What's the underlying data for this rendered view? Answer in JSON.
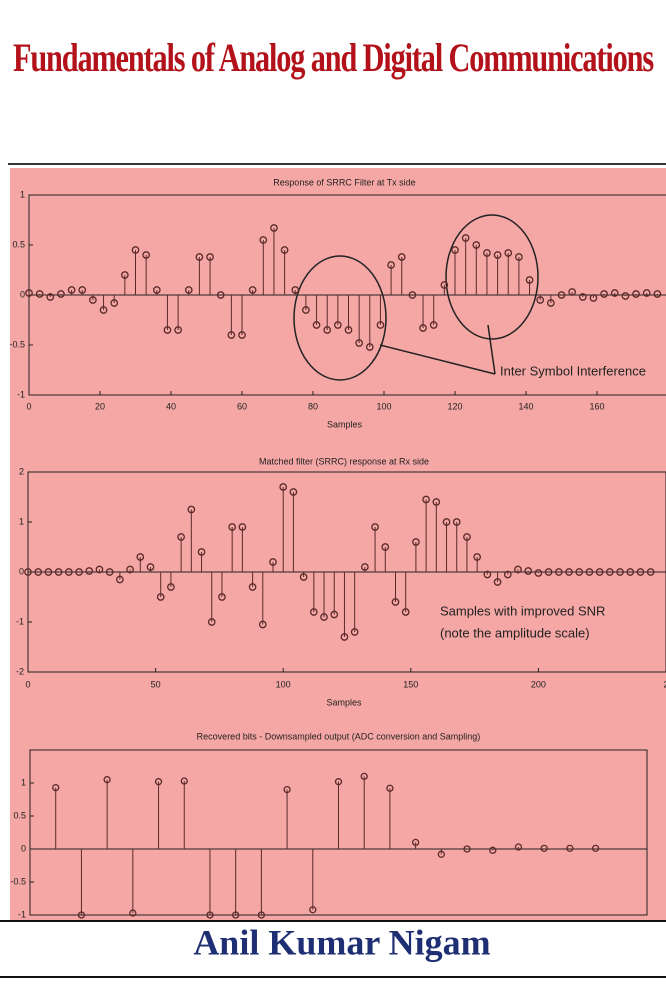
{
  "title": "Fundamentals of Analog and Digital Communications",
  "author": "Anil Kumar Nigam",
  "chart_data": [
    {
      "type": "stem",
      "title": "Response of SRRC Filter at Tx side",
      "x_label": "Samples",
      "annotations": [
        "Inter Symbol Interference"
      ],
      "xlim": [
        0,
        180
      ],
      "ylim": [
        -1,
        1
      ],
      "xticks": [
        0,
        20,
        40,
        60,
        80,
        100,
        120,
        140,
        160,
        {
          "value": 180,
          "label": "1"
        }
      ],
      "yticks": [
        1,
        0.5,
        0,
        -0.5,
        -1
      ],
      "color": "#5a2a2a",
      "x": [
        0,
        3,
        6,
        9,
        12,
        15,
        18,
        21,
        24,
        27,
        30,
        33,
        36,
        39,
        42,
        45,
        48,
        51,
        54,
        57,
        60,
        63,
        66,
        69,
        72,
        75,
        78,
        81,
        84,
        87,
        90,
        93,
        96,
        99,
        102,
        105,
        108,
        111,
        114,
        117,
        120,
        123,
        126,
        129,
        132,
        135,
        138,
        141,
        144,
        147,
        150,
        153,
        156,
        159,
        162,
        165,
        168,
        171,
        174,
        177
      ],
      "values": [
        0.02,
        0.01,
        -0.02,
        0.01,
        0.05,
        0.05,
        -0.05,
        -0.15,
        -0.08,
        0.2,
        0.45,
        0.4,
        0.05,
        -0.35,
        -0.35,
        0.05,
        0.38,
        0.38,
        0.0,
        -0.4,
        -0.4,
        0.05,
        0.55,
        0.67,
        0.45,
        0.05,
        -0.15,
        -0.3,
        -0.35,
        -0.3,
        -0.35,
        -0.48,
        -0.52,
        -0.3,
        0.3,
        0.38,
        0.0,
        -0.33,
        -0.3,
        0.1,
        0.45,
        0.57,
        0.5,
        0.42,
        0.4,
        0.42,
        0.38,
        0.15,
        -0.05,
        -0.08,
        0.0,
        0.03,
        -0.02,
        -0.03,
        0.01,
        0.02,
        -0.01,
        0.01,
        0.02,
        0.01
      ]
    },
    {
      "type": "stem",
      "title": "Matched filter (SRRC) response at Rx side",
      "x_label": "Samples",
      "annotations": [
        "Samples with improved SNR",
        "(note the amplitude scale)"
      ],
      "xlim": [
        0,
        250
      ],
      "ylim": [
        -2,
        2
      ],
      "xticks": [
        0,
        50,
        100,
        150,
        200,
        {
          "value": 250,
          "label": "2"
        }
      ],
      "yticks": [
        2,
        1,
        0,
        -1,
        -2
      ],
      "color": "#5a2a2a",
      "x": [
        0,
        4,
        8,
        12,
        16,
        20,
        24,
        28,
        32,
        36,
        40,
        44,
        48,
        52,
        56,
        60,
        64,
        68,
        72,
        76,
        80,
        84,
        88,
        92,
        96,
        100,
        104,
        108,
        112,
        116,
        120,
        124,
        128,
        132,
        136,
        140,
        144,
        148,
        152,
        156,
        160,
        164,
        168,
        172,
        176,
        180,
        184,
        188,
        192,
        196,
        200,
        204,
        208,
        212,
        216,
        220,
        224,
        228,
        232,
        236,
        240,
        244
      ],
      "values": [
        0,
        0,
        0,
        0,
        0,
        0,
        0.02,
        0.05,
        0.0,
        -0.15,
        0.05,
        0.3,
        0.1,
        -0.5,
        -0.3,
        0.7,
        1.25,
        0.4,
        -1.0,
        -0.5,
        0.9,
        0.9,
        -0.3,
        -1.05,
        0.2,
        1.7,
        1.6,
        -0.1,
        -0.8,
        -0.9,
        -0.85,
        -1.3,
        -1.2,
        0.1,
        0.9,
        0.5,
        -0.6,
        -0.8,
        0.6,
        1.45,
        1.4,
        1.0,
        1.0,
        0.7,
        0.3,
        -0.05,
        -0.2,
        -0.05,
        0.05,
        0.02,
        -0.02,
        0,
        0,
        0,
        0,
        0,
        0,
        0,
        0,
        0,
        0,
        0
      ]
    },
    {
      "type": "stem",
      "title": "Recovered bits - Downsampled output (ADC conversion and Sampling)",
      "xlim": [
        0,
        24
      ],
      "ylim": [
        -1,
        1.5
      ],
      "yticks": [
        1,
        0.5,
        0,
        -0.5,
        -1
      ],
      "color": "#5a2a2a",
      "x": [
        1,
        2,
        3,
        4,
        5,
        6,
        7,
        8,
        9,
        10,
        11,
        12,
        13,
        14,
        15,
        16,
        17,
        18,
        19,
        20,
        21,
        22
      ],
      "values": [
        0.93,
        -1,
        1.05,
        -0.97,
        1.02,
        1.03,
        -1,
        -1,
        -1,
        0.9,
        -0.92,
        1.02,
        1.1,
        0.92,
        0.1,
        -0.08,
        0,
        -0.02,
        0.03,
        0.01,
        0.01,
        0.01
      ]
    }
  ]
}
